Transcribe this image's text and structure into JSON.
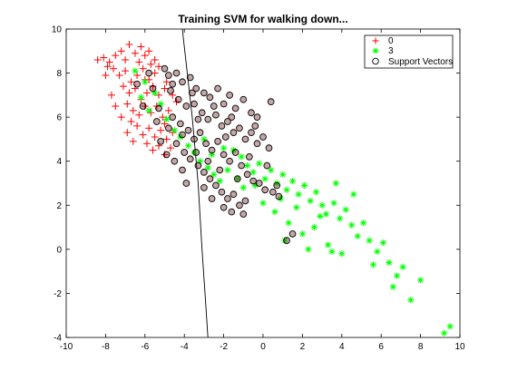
{
  "chart_data": {
    "type": "scatter",
    "title": "Training SVM for walking down...",
    "xlabel": "",
    "ylabel": "",
    "xlim": [
      -10,
      10
    ],
    "ylim": [
      -4,
      10
    ],
    "x_ticks": [
      -10,
      -8,
      -6,
      -4,
      -2,
      0,
      2,
      4,
      6,
      8,
      10
    ],
    "y_ticks": [
      -4,
      -2,
      0,
      2,
      4,
      6,
      8,
      10
    ],
    "grid": false,
    "legend_position": "top-right",
    "legend": [
      "0",
      "3",
      "Support Vectors"
    ],
    "colors": {
      "class0": "#ff0000",
      "class3": "#00ff00",
      "support": "#000000",
      "boundary": "#000000",
      "sv_fill_dark": "#5a0000"
    },
    "series": [
      {
        "name": "0",
        "marker": "plus",
        "color": "#ff0000",
        "points": [
          [
            -8.4,
            8.6
          ],
          [
            -8.1,
            8.7
          ],
          [
            -7.8,
            8.5
          ],
          [
            -7.5,
            8.8
          ],
          [
            -7.2,
            9.0
          ],
          [
            -7.0,
            8.6
          ],
          [
            -6.8,
            9.3
          ],
          [
            -6.5,
            8.9
          ],
          [
            -6.2,
            9.2
          ],
          [
            -6.0,
            8.8
          ],
          [
            -5.8,
            9.0
          ],
          [
            -5.5,
            8.6
          ],
          [
            -7.6,
            8.2
          ],
          [
            -7.3,
            7.9
          ],
          [
            -7.0,
            8.1
          ],
          [
            -6.7,
            7.6
          ],
          [
            -6.4,
            7.9
          ],
          [
            -6.1,
            8.2
          ],
          [
            -5.8,
            7.7
          ],
          [
            -5.5,
            8.0
          ],
          [
            -7.1,
            7.4
          ],
          [
            -6.8,
            7.1
          ],
          [
            -6.5,
            7.3
          ],
          [
            -6.2,
            6.8
          ],
          [
            -5.9,
            7.1
          ],
          [
            -5.6,
            7.4
          ],
          [
            -5.3,
            7.0
          ],
          [
            -5.0,
            7.3
          ],
          [
            -6.9,
            6.6
          ],
          [
            -6.6,
            6.3
          ],
          [
            -6.3,
            6.1
          ],
          [
            -6.0,
            6.5
          ],
          [
            -5.7,
            6.2
          ],
          [
            -5.4,
            6.5
          ],
          [
            -5.1,
            6.0
          ],
          [
            -4.8,
            6.3
          ],
          [
            -6.4,
            5.6
          ],
          [
            -6.1,
            5.2
          ],
          [
            -5.8,
            5.5
          ],
          [
            -5.5,
            5.1
          ],
          [
            -5.2,
            5.4
          ],
          [
            -4.9,
            5.0
          ],
          [
            -4.6,
            5.3
          ],
          [
            -5.9,
            4.8
          ],
          [
            -5.6,
            4.5
          ],
          [
            -5.3,
            4.7
          ],
          [
            -5.0,
            4.3
          ],
          [
            -4.7,
            4.6
          ],
          [
            -6.9,
            5.3
          ],
          [
            -7.2,
            6.0
          ],
          [
            -7.5,
            6.5
          ],
          [
            -6.6,
            4.9
          ],
          [
            -5.3,
            8.3
          ],
          [
            -4.9,
            7.6
          ],
          [
            -4.6,
            7.0
          ],
          [
            -4.4,
            6.7
          ],
          [
            -6.0,
            7.7
          ],
          [
            -5.7,
            8.4
          ],
          [
            -6.3,
            8.5
          ],
          [
            -7.9,
            8.3
          ],
          [
            -8.0,
            7.9
          ],
          [
            -7.7,
            7.0
          ],
          [
            -6.7,
            5.8
          ],
          [
            -5.0,
            5.7
          ]
        ]
      },
      {
        "name": "3",
        "marker": "asterisk",
        "color": "#00ff00",
        "points": [
          [
            -6.5,
            8.1
          ],
          [
            -6.0,
            7.6
          ],
          [
            -5.5,
            7.1
          ],
          [
            -5.2,
            6.6
          ],
          [
            -6.2,
            6.9
          ],
          [
            -5.8,
            6.3
          ],
          [
            -4.9,
            5.9
          ],
          [
            -4.5,
            5.4
          ],
          [
            -4.2,
            5.1
          ],
          [
            -3.8,
            4.7
          ],
          [
            -3.5,
            4.4
          ],
          [
            -3.2,
            4.0
          ],
          [
            -2.8,
            3.7
          ],
          [
            -2.5,
            3.4
          ],
          [
            -2.2,
            3.1
          ],
          [
            -1.8,
            3.6
          ],
          [
            -1.5,
            4.5
          ],
          [
            -1.1,
            4.2
          ],
          [
            -0.8,
            3.8
          ],
          [
            -0.5,
            3.5
          ],
          [
            -0.2,
            3.9
          ],
          [
            0.1,
            3.2
          ],
          [
            0.4,
            3.6
          ],
          [
            0.7,
            3.0
          ],
          [
            1.0,
            3.4
          ],
          [
            1.2,
            2.7
          ],
          [
            1.5,
            3.1
          ],
          [
            1.8,
            2.5
          ],
          [
            2.1,
            2.9
          ],
          [
            2.4,
            2.2
          ],
          [
            2.7,
            2.6
          ],
          [
            3.0,
            2.0
          ],
          [
            3.2,
            1.6
          ],
          [
            3.6,
            2.1
          ],
          [
            3.9,
            1.4
          ],
          [
            4.2,
            1.8
          ],
          [
            4.5,
            1.1
          ],
          [
            4.8,
            0.6
          ],
          [
            5.1,
            1.2
          ],
          [
            5.4,
            0.4
          ],
          [
            5.8,
            -0.1
          ],
          [
            6.1,
            0.3
          ],
          [
            6.4,
            -0.6
          ],
          [
            6.8,
            -1.2
          ],
          [
            7.1,
            -0.8
          ],
          [
            7.5,
            -2.3
          ],
          [
            8.0,
            -1.4
          ],
          [
            9.2,
            -3.8
          ],
          [
            9.5,
            -3.5
          ],
          [
            -1.0,
            2.8
          ],
          [
            0.0,
            2.1
          ],
          [
            0.6,
            1.7
          ],
          [
            1.3,
            1.2
          ],
          [
            2.0,
            0.7
          ],
          [
            2.6,
            1.0
          ],
          [
            3.3,
            0.2
          ],
          [
            4.0,
            -0.2
          ],
          [
            0.9,
            2.3
          ],
          [
            -0.4,
            2.9
          ],
          [
            1.7,
            1.9
          ],
          [
            2.9,
            1.5
          ],
          [
            3.7,
            3.0
          ],
          [
            4.6,
            2.5
          ],
          [
            1.1,
            0.4
          ],
          [
            -2.0,
            4.6
          ],
          [
            -1.3,
            3.2
          ],
          [
            5.6,
            -0.7
          ],
          [
            6.6,
            -1.7
          ],
          [
            3.5,
            -0.1
          ],
          [
            2.3,
            0.0
          ],
          [
            -3.0,
            5.0
          ],
          [
            -2.6,
            4.3
          ]
        ]
      },
      {
        "name": "Support Vectors",
        "marker": "circle",
        "color": "#000000",
        "points": [
          [
            -5.0,
            8.2
          ],
          [
            -4.8,
            7.9
          ],
          [
            -4.4,
            8.0
          ],
          [
            -4.1,
            7.6
          ],
          [
            -3.7,
            7.8
          ],
          [
            -3.4,
            7.3
          ],
          [
            -3.0,
            7.1
          ],
          [
            -2.7,
            6.9
          ],
          [
            -2.3,
            7.3
          ],
          [
            -2.0,
            6.6
          ],
          [
            -1.7,
            7.0
          ],
          [
            -1.4,
            6.4
          ],
          [
            -1.0,
            6.8
          ],
          [
            -0.6,
            6.2
          ],
          [
            -0.3,
            6.0
          ],
          [
            0.4,
            6.7
          ],
          [
            -4.7,
            7.2
          ],
          [
            -4.3,
            6.8
          ],
          [
            -3.9,
            6.5
          ],
          [
            -3.5,
            6.6
          ],
          [
            -3.1,
            6.2
          ],
          [
            -2.8,
            5.9
          ],
          [
            -2.4,
            6.1
          ],
          [
            -2.1,
            5.6
          ],
          [
            -1.8,
            5.8
          ],
          [
            -1.5,
            5.3
          ],
          [
            -1.2,
            5.5
          ],
          [
            -0.9,
            5.0
          ],
          [
            -0.6,
            5.3
          ],
          [
            -0.3,
            4.8
          ],
          [
            0.0,
            5.1
          ],
          [
            0.3,
            4.6
          ],
          [
            -4.6,
            6.0
          ],
          [
            -4.2,
            5.7
          ],
          [
            -3.8,
            5.4
          ],
          [
            -3.5,
            5.0
          ],
          [
            -3.2,
            5.3
          ],
          [
            -2.9,
            4.8
          ],
          [
            -2.6,
            4.5
          ],
          [
            -2.3,
            4.9
          ],
          [
            -2.0,
            4.3
          ],
          [
            -1.7,
            4.0
          ],
          [
            -1.4,
            4.4
          ],
          [
            -1.1,
            3.8
          ],
          [
            -0.8,
            3.4
          ],
          [
            -0.5,
            3.1
          ],
          [
            -0.2,
            3.0
          ],
          [
            0.1,
            2.7
          ],
          [
            -4.4,
            4.8
          ],
          [
            -4.0,
            4.4
          ],
          [
            -3.7,
            4.1
          ],
          [
            -3.3,
            3.8
          ],
          [
            -3.0,
            3.5
          ],
          [
            -2.7,
            3.2
          ],
          [
            -2.4,
            2.9
          ],
          [
            -2.1,
            2.6
          ],
          [
            -1.8,
            2.3
          ],
          [
            -1.5,
            2.5
          ],
          [
            -1.2,
            2.0
          ],
          [
            -0.9,
            2.2
          ],
          [
            0.5,
            2.6
          ],
          [
            0.8,
            2.4
          ],
          [
            1.5,
            0.7
          ],
          [
            1.2,
            0.4
          ],
          [
            -5.6,
            7.3
          ],
          [
            -6.1,
            6.5
          ],
          [
            -5.4,
            5.8
          ],
          [
            -5.2,
            4.9
          ],
          [
            -4.9,
            4.3
          ],
          [
            -4.5,
            4.0
          ],
          [
            -4.1,
            3.6
          ],
          [
            -3.9,
            3.0
          ],
          [
            -4.6,
            7.5
          ],
          [
            -3.6,
            7.1
          ],
          [
            -2.5,
            6.5
          ],
          [
            -1.6,
            6.0
          ],
          [
            -0.4,
            5.6
          ],
          [
            -1.9,
            5.1
          ],
          [
            -3.3,
            5.9
          ],
          [
            -4.1,
            5.2
          ],
          [
            -3.4,
            4.4
          ],
          [
            -2.8,
            4.0
          ],
          [
            -2.2,
            3.6
          ],
          [
            -1.3,
            3.2
          ],
          [
            -0.7,
            4.2
          ],
          [
            0.2,
            3.8
          ],
          [
            -5.8,
            8.0
          ],
          [
            -6.4,
            7.5
          ],
          [
            -5.3,
            6.4
          ],
          [
            -4.8,
            5.5
          ],
          [
            -3.0,
            2.8
          ],
          [
            -2.6,
            2.3
          ],
          [
            -2.0,
            1.9
          ],
          [
            0.7,
            2.9
          ],
          [
            -1.0,
            1.6
          ],
          [
            -1.6,
            1.7
          ]
        ]
      }
    ],
    "boundary_line": {
      "points": [
        [
          -4.1,
          10.0
        ],
        [
          -3.6,
          6.0
        ],
        [
          -3.3,
          3.0
        ],
        [
          -3.1,
          0.0
        ],
        [
          -2.95,
          -2.0
        ],
        [
          -2.8,
          -4.0
        ]
      ]
    }
  }
}
